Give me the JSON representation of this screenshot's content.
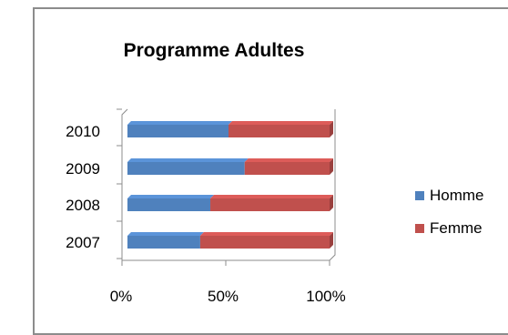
{
  "chart_data": {
    "type": "bar",
    "orientation": "horizontal",
    "stacked": "percent",
    "title": "Programme Adultes",
    "categories": [
      "2010",
      "2009",
      "2008",
      "2007"
    ],
    "series": [
      {
        "name": "Homme",
        "color": "#4f81bd",
        "values": [
          50,
          58,
          41,
          36
        ]
      },
      {
        "name": "Femme",
        "color": "#c0504d",
        "values": [
          50,
          42,
          59,
          64
        ]
      }
    ],
    "xticks": [
      "0%",
      "50%",
      "100%"
    ],
    "xlim": [
      0,
      100
    ],
    "legend": "right",
    "grid": false
  }
}
